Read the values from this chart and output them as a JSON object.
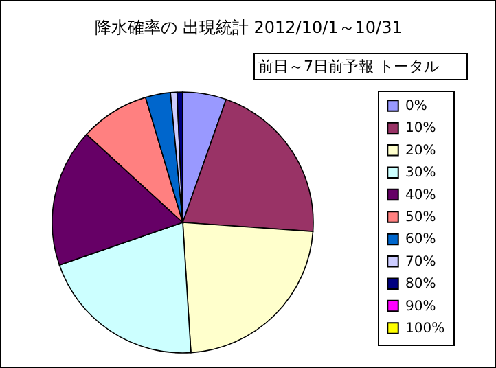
{
  "chart_data": {
    "type": "pie",
    "title": "降水確率の 出現統計 2012/10/1～10/31",
    "subtitle": "前日～7日前予報 トータル",
    "categories": [
      "0%",
      "10%",
      "20%",
      "30%",
      "40%",
      "50%",
      "60%",
      "70%",
      "80%",
      "90%",
      "100%"
    ],
    "values": [
      5.4,
      20.7,
      22.9,
      20.7,
      17.1,
      8.6,
      3.1,
      0.8,
      0.7,
      0,
      0
    ],
    "colors": [
      "#9999ff",
      "#993366",
      "#ffffcc",
      "#ccffff",
      "#660066",
      "#ff8080",
      "#0066cc",
      "#ccccff",
      "#000080",
      "#ff00ff",
      "#ffff00"
    ],
    "legend": "right"
  }
}
